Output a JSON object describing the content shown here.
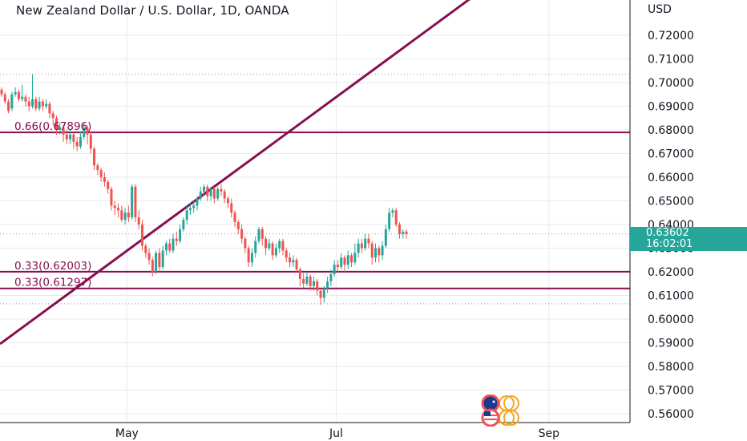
{
  "chart_title": "New Zealand Dollar / U.S. Dollar, 1D, OANDA",
  "currency": "USD",
  "current_price": {
    "value": "0.63602",
    "countdown": "16:02:01"
  },
  "colors": {
    "up": "#26a69a",
    "down": "#ef5350",
    "drawing": "#880e4f",
    "grid": "#e8eaee",
    "text": "#131722",
    "dotted": "#9598a1"
  },
  "chart_data": {
    "type": "candlestick",
    "title": "New Zealand Dollar / U.S. Dollar, 1D, OANDA",
    "ylabel": "USD",
    "ylim": [
      0.555,
      0.738
    ],
    "y_ticks": [
      "0.72000",
      "0.71000",
      "0.70000",
      "0.69000",
      "0.68000",
      "0.67000",
      "0.66000",
      "0.65000",
      "0.64000",
      "0.63000",
      "0.62000",
      "0.61000",
      "0.60000",
      "0.59000",
      "0.58000",
      "0.57000",
      "0.56000"
    ],
    "x_ticks": [
      {
        "label": "May",
        "day": 37
      },
      {
        "label": "Jul",
        "day": 98
      },
      {
        "label": "Sep",
        "day": 160
      }
    ],
    "horizontal_levels": [
      {
        "label": "0.66(0.67896)",
        "price": 0.67896
      },
      {
        "label": "0.33(0.62003)",
        "price": 0.62003
      },
      {
        "label": "0.33(0.61297)",
        "price": 0.61297
      }
    ],
    "trendline": {
      "from": {
        "day": 0,
        "price": 0.5895
      },
      "to": {
        "day": 140,
        "price": 0.7386
      }
    },
    "dotted_levels": [
      0.7035,
      0.636,
      0.6065
    ],
    "candles": [
      [
        0,
        0.697,
        0.695,
        0.698,
        0.694
      ],
      [
        1,
        0.695,
        0.692,
        0.696,
        0.691
      ],
      [
        2,
        0.692,
        0.688,
        0.693,
        0.687
      ],
      [
        3,
        0.689,
        0.695,
        0.696,
        0.688
      ],
      [
        4,
        0.695,
        0.696,
        0.698,
        0.694
      ],
      [
        5,
        0.696,
        0.693,
        0.697,
        0.692
      ],
      [
        6,
        0.693,
        0.694,
        0.699,
        0.692
      ],
      [
        7,
        0.694,
        0.692,
        0.695,
        0.69
      ],
      [
        8,
        0.692,
        0.69,
        0.694,
        0.688
      ],
      [
        9,
        0.69,
        0.693,
        0.7035,
        0.689
      ],
      [
        10,
        0.693,
        0.689,
        0.694,
        0.688
      ],
      [
        11,
        0.689,
        0.692,
        0.694,
        0.688
      ],
      [
        12,
        0.692,
        0.69,
        0.693,
        0.688
      ],
      [
        13,
        0.69,
        0.691,
        0.693,
        0.689
      ],
      [
        14,
        0.691,
        0.687,
        0.692,
        0.685
      ],
      [
        15,
        0.687,
        0.685,
        0.688,
        0.682
      ],
      [
        16,
        0.685,
        0.68,
        0.686,
        0.678
      ],
      [
        17,
        0.68,
        0.681,
        0.683,
        0.678
      ],
      [
        18,
        0.681,
        0.678,
        0.682,
        0.675
      ],
      [
        19,
        0.678,
        0.676,
        0.68,
        0.674
      ],
      [
        20,
        0.676,
        0.678,
        0.68,
        0.674
      ],
      [
        21,
        0.678,
        0.675,
        0.679,
        0.672
      ],
      [
        22,
        0.675,
        0.673,
        0.677,
        0.671
      ],
      [
        23,
        0.673,
        0.677,
        0.679,
        0.672
      ],
      [
        24,
        0.677,
        0.681,
        0.683,
        0.676
      ],
      [
        25,
        0.681,
        0.678,
        0.682,
        0.674
      ],
      [
        26,
        0.678,
        0.672,
        0.679,
        0.67
      ],
      [
        27,
        0.672,
        0.665,
        0.673,
        0.663
      ],
      [
        28,
        0.665,
        0.663,
        0.666,
        0.661
      ],
      [
        29,
        0.663,
        0.66,
        0.664,
        0.658
      ],
      [
        30,
        0.66,
        0.658,
        0.662,
        0.656
      ],
      [
        31,
        0.658,
        0.655,
        0.659,
        0.653
      ],
      [
        32,
        0.655,
        0.648,
        0.656,
        0.646
      ],
      [
        33,
        0.648,
        0.647,
        0.65,
        0.644
      ],
      [
        34,
        0.647,
        0.646,
        0.649,
        0.643
      ],
      [
        35,
        0.646,
        0.642,
        0.648,
        0.641
      ],
      [
        36,
        0.642,
        0.645,
        0.647,
        0.64
      ],
      [
        37,
        0.645,
        0.643,
        0.648,
        0.641
      ],
      [
        38,
        0.643,
        0.656,
        0.657,
        0.642
      ],
      [
        39,
        0.656,
        0.643,
        0.657,
        0.641
      ],
      [
        40,
        0.643,
        0.64,
        0.646,
        0.638
      ],
      [
        41,
        0.64,
        0.631,
        0.642,
        0.629
      ],
      [
        42,
        0.631,
        0.628,
        0.632,
        0.626
      ],
      [
        43,
        0.628,
        0.625,
        0.63,
        0.623
      ],
      [
        44,
        0.625,
        0.62,
        0.626,
        0.618
      ],
      [
        45,
        0.62,
        0.628,
        0.629,
        0.619
      ],
      [
        46,
        0.628,
        0.622,
        0.63,
        0.62
      ],
      [
        47,
        0.622,
        0.629,
        0.631,
        0.621
      ],
      [
        48,
        0.629,
        0.632,
        0.633,
        0.627
      ],
      [
        49,
        0.632,
        0.629,
        0.634,
        0.628
      ],
      [
        50,
        0.629,
        0.634,
        0.636,
        0.628
      ],
      [
        51,
        0.634,
        0.633,
        0.637,
        0.631
      ],
      [
        52,
        0.633,
        0.638,
        0.64,
        0.632
      ],
      [
        53,
        0.638,
        0.642,
        0.643,
        0.637
      ],
      [
        54,
        0.642,
        0.646,
        0.648,
        0.64
      ],
      [
        55,
        0.646,
        0.647,
        0.649,
        0.644
      ],
      [
        56,
        0.647,
        0.648,
        0.65,
        0.645
      ],
      [
        57,
        0.648,
        0.651,
        0.652,
        0.646
      ],
      [
        58,
        0.651,
        0.654,
        0.656,
        0.65
      ],
      [
        59,
        0.654,
        0.656,
        0.657,
        0.652
      ],
      [
        60,
        0.656,
        0.652,
        0.657,
        0.65
      ],
      [
        61,
        0.652,
        0.655,
        0.656,
        0.65
      ],
      [
        62,
        0.655,
        0.651,
        0.656,
        0.649
      ],
      [
        63,
        0.651,
        0.655,
        0.656,
        0.65
      ],
      [
        64,
        0.655,
        0.654,
        0.657,
        0.652
      ],
      [
        65,
        0.654,
        0.651,
        0.655,
        0.649
      ],
      [
        66,
        0.651,
        0.649,
        0.652,
        0.647
      ],
      [
        67,
        0.649,
        0.645,
        0.651,
        0.643
      ],
      [
        68,
        0.645,
        0.641,
        0.646,
        0.639
      ],
      [
        69,
        0.641,
        0.638,
        0.642,
        0.636
      ],
      [
        70,
        0.638,
        0.634,
        0.64,
        0.632
      ],
      [
        71,
        0.634,
        0.63,
        0.635,
        0.628
      ],
      [
        72,
        0.63,
        0.624,
        0.631,
        0.622
      ],
      [
        73,
        0.624,
        0.628,
        0.63,
        0.622
      ],
      [
        74,
        0.628,
        0.633,
        0.635,
        0.626
      ],
      [
        75,
        0.633,
        0.638,
        0.639,
        0.632
      ],
      [
        76,
        0.638,
        0.634,
        0.639,
        0.631
      ],
      [
        77,
        0.634,
        0.63,
        0.635,
        0.627
      ],
      [
        78,
        0.63,
        0.632,
        0.634,
        0.629
      ],
      [
        79,
        0.632,
        0.627,
        0.633,
        0.625
      ],
      [
        80,
        0.627,
        0.63,
        0.632,
        0.626
      ],
      [
        81,
        0.63,
        0.633,
        0.634,
        0.628
      ],
      [
        82,
        0.633,
        0.629,
        0.634,
        0.627
      ],
      [
        83,
        0.629,
        0.626,
        0.63,
        0.624
      ],
      [
        84,
        0.626,
        0.624,
        0.628,
        0.622
      ],
      [
        85,
        0.624,
        0.625,
        0.627,
        0.622
      ],
      [
        86,
        0.625,
        0.621,
        0.626,
        0.62
      ],
      [
        87,
        0.621,
        0.617,
        0.622,
        0.614
      ],
      [
        88,
        0.617,
        0.615,
        0.62,
        0.613
      ],
      [
        89,
        0.615,
        0.618,
        0.62,
        0.614
      ],
      [
        90,
        0.618,
        0.614,
        0.619,
        0.612
      ],
      [
        91,
        0.614,
        0.616,
        0.618,
        0.612
      ],
      [
        92,
        0.616,
        0.612,
        0.617,
        0.61
      ],
      [
        93,
        0.612,
        0.609,
        0.613,
        0.606
      ],
      [
        94,
        0.609,
        0.613,
        0.614,
        0.607
      ],
      [
        95,
        0.613,
        0.616,
        0.618,
        0.611
      ],
      [
        96,
        0.616,
        0.619,
        0.621,
        0.614
      ],
      [
        97,
        0.619,
        0.623,
        0.625,
        0.618
      ],
      [
        98,
        0.623,
        0.622,
        0.625,
        0.62
      ],
      [
        99,
        0.622,
        0.626,
        0.628,
        0.621
      ],
      [
        100,
        0.626,
        0.623,
        0.627,
        0.62
      ],
      [
        101,
        0.623,
        0.627,
        0.629,
        0.621
      ],
      [
        102,
        0.627,
        0.624,
        0.628,
        0.622
      ],
      [
        103,
        0.624,
        0.628,
        0.632,
        0.623
      ],
      [
        104,
        0.628,
        0.632,
        0.634,
        0.626
      ],
      [
        105,
        0.632,
        0.63,
        0.634,
        0.628
      ],
      [
        106,
        0.63,
        0.634,
        0.636,
        0.629
      ],
      [
        107,
        0.634,
        0.632,
        0.636,
        0.63
      ],
      [
        108,
        0.632,
        0.626,
        0.633,
        0.623
      ],
      [
        109,
        0.626,
        0.63,
        0.632,
        0.624
      ],
      [
        110,
        0.63,
        0.627,
        0.631,
        0.624
      ],
      [
        111,
        0.627,
        0.631,
        0.633,
        0.625
      ],
      [
        112,
        0.631,
        0.638,
        0.64,
        0.63
      ],
      [
        113,
        0.638,
        0.645,
        0.647,
        0.637
      ],
      [
        114,
        0.645,
        0.646,
        0.647,
        0.643
      ],
      [
        115,
        0.646,
        0.64,
        0.647,
        0.639
      ],
      [
        116,
        0.64,
        0.636,
        0.641,
        0.634
      ],
      [
        117,
        0.636,
        0.637,
        0.638,
        0.634
      ],
      [
        118,
        0.637,
        0.636,
        0.638,
        0.634
      ]
    ]
  }
}
